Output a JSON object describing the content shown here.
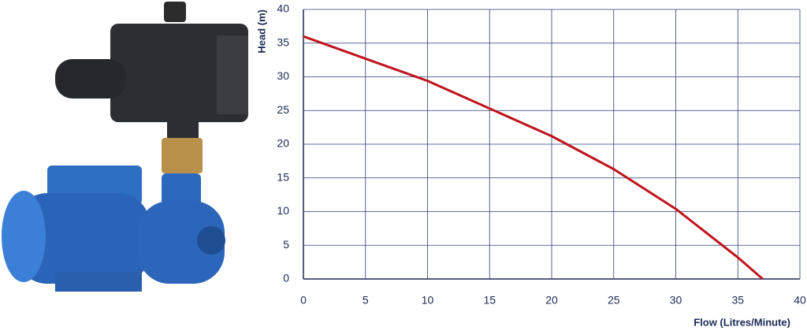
{
  "chart_data": {
    "type": "line",
    "x": [
      0,
      5,
      10,
      15,
      20,
      25,
      30,
      35,
      37
    ],
    "values": [
      36,
      32.7,
      29.4,
      25.3,
      21.2,
      16.3,
      10.4,
      3.2,
      0
    ],
    "color": "#c0141c",
    "xlabel": "Flow (Litres/Minute)",
    "ylabel": "Head (m)",
    "xlim": [
      0,
      40
    ],
    "xticks": [
      0,
      5,
      10,
      15,
      20,
      25,
      30,
      35,
      40
    ],
    "ylim": [
      0,
      40
    ],
    "yticks": [
      0,
      5,
      10,
      15,
      20,
      25,
      30,
      35,
      40
    ],
    "grid": true
  }
}
